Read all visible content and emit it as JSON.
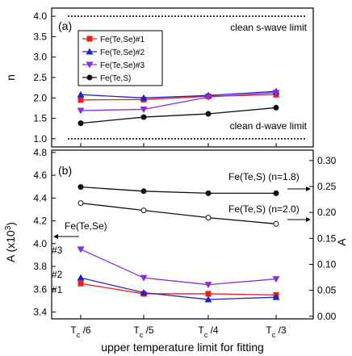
{
  "chart_data": [
    {
      "type": "line",
      "panel_label": "(a)",
      "ylabel": "n",
      "ylim": [
        0.8,
        4.2
      ],
      "yticks": [
        1.0,
        1.5,
        2.0,
        2.5,
        3.0,
        3.5,
        4.0
      ],
      "categories": [
        "Tc/6",
        "Tc/5",
        "Tc/4",
        "Tc/3"
      ],
      "reference_lines": [
        {
          "label": "clean s-wave limit",
          "y": 4.0
        },
        {
          "label": "clean d-wave limit",
          "y": 1.0
        }
      ],
      "legend_position": "top-left",
      "series": [
        {
          "name": "Fe(Te,Se)#1",
          "color": "#ee1c1c",
          "marker": "square",
          "values": [
            1.95,
            1.96,
            2.04,
            2.08
          ]
        },
        {
          "name": "Fe(Te,Se)#2",
          "color": "#2222cc",
          "marker": "triangle-up",
          "values": [
            2.08,
            2.0,
            2.06,
            2.16
          ]
        },
        {
          "name": "Fe(Te,Se)#3",
          "color": "#8a2be2",
          "marker": "triangle-down",
          "values": [
            1.69,
            1.72,
            2.02,
            2.13
          ]
        },
        {
          "name": "Fe(Te,S)",
          "color": "#111111",
          "marker": "circle",
          "values": [
            1.38,
            1.53,
            1.61,
            1.76
          ]
        }
      ]
    },
    {
      "type": "line",
      "panel_label": "(b)",
      "ylabel": "A (x10",
      "ylabel_sup": "3",
      "ylabel_close": ")",
      "ylim": [
        3.34,
        4.82
      ],
      "yticks": [
        3.4,
        3.6,
        3.8,
        4.0,
        4.2,
        4.4,
        4.6,
        4.8
      ],
      "y2label": "A",
      "y2lim": [
        -0.005,
        0.32
      ],
      "y2ticks": [
        "0.00",
        "0.05",
        "0.10",
        "0.15",
        "0.20",
        "0.25",
        "0.30"
      ],
      "xlabel": "upper temperature limit for fitting",
      "xtick_main": "T",
      "xtick_sub": "c",
      "xticks": [
        "/6",
        "/5",
        "/4",
        "/3"
      ],
      "categories": [
        "Tc/6",
        "Tc/5",
        "Tc/4",
        "Tc/3"
      ],
      "annotations": [
        {
          "label": "Fe(Te,Se)",
          "axis": "left"
        },
        {
          "label": "Fe(Te,S) (n=1.8)",
          "axis": "right"
        },
        {
          "label": "Fe(Te,S) (n=2.0)",
          "axis": "right"
        },
        {
          "label": "#1"
        },
        {
          "label": "#2"
        },
        {
          "label": "#3"
        }
      ],
      "series_left_axis": [
        {
          "name": "Fe(Te,Se)#1",
          "color": "#ee1c1c",
          "marker": "square",
          "values": [
            3.65,
            3.56,
            3.56,
            3.55
          ]
        },
        {
          "name": "Fe(Te,Se)#2",
          "color": "#2222cc",
          "marker": "triangle-up",
          "values": [
            3.7,
            3.57,
            3.51,
            3.53
          ]
        },
        {
          "name": "Fe(Te,Se)#3",
          "color": "#8a2be2",
          "marker": "triangle-down",
          "values": [
            3.95,
            3.7,
            3.64,
            3.69
          ]
        }
      ],
      "series_right_axis": [
        {
          "name": "Fe(Te,S) (n=1.8)",
          "color": "#111111",
          "marker": "circle",
          "values": [
            0.249,
            0.241,
            0.237,
            0.237
          ]
        },
        {
          "name": "Fe(Te,S) (n=2.0)",
          "color": "#111111",
          "marker": "circle-open",
          "values": [
            0.218,
            0.204,
            0.19,
            0.178
          ]
        }
      ]
    }
  ]
}
